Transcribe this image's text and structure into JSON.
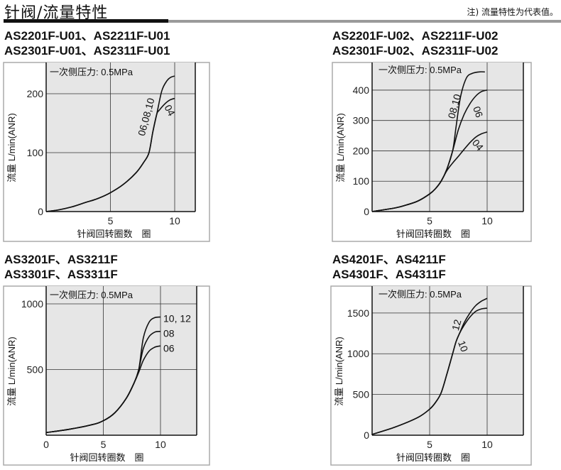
{
  "header": {
    "title": "针阀/流量特性",
    "note": "注) 流量特性为代表值。"
  },
  "colors": {
    "plot_bg": "#e6e6e6",
    "curve": "#111111",
    "grid": "#333333",
    "title_bar": "#111111",
    "rule": "#9a9a9a"
  },
  "chart_data": [
    {
      "type": "line",
      "title_lines": [
        "AS2201F-U01、AS2211F-U01",
        "AS2301F-U01、AS2311F-U01"
      ],
      "annotation": "一次侧压力: 0.5MPa",
      "xlabel": "针阀回转圈数　圈",
      "ylabel": "流量 L/min(ANR)",
      "xticks": [
        0,
        5,
        10
      ],
      "xtick_labels": [
        "",
        "5",
        "10"
      ],
      "yticks": [
        0,
        100,
        200
      ],
      "ytick_labels": [
        "0",
        "100",
        "200"
      ],
      "xlim": [
        0,
        11.2
      ],
      "ylim": [
        0,
        253
      ],
      "grid": true,
      "series": [
        {
          "name": "06,08,10",
          "x": [
            0,
            1,
            2,
            3,
            4,
            5,
            6,
            7,
            7.6,
            8,
            8.3,
            8.6,
            9,
            9.4,
            9.7,
            10
          ],
          "y": [
            0,
            3,
            8,
            15,
            22,
            32,
            46,
            66,
            84,
            100,
            135,
            165,
            205,
            222,
            228,
            230
          ]
        },
        {
          "name": "04",
          "x": [
            0,
            1,
            2,
            3,
            4,
            5,
            6,
            7,
            7.6,
            8,
            8.3,
            8.6,
            8.8,
            9.2,
            9.6,
            10
          ],
          "y": [
            0,
            3,
            8,
            15,
            22,
            32,
            46,
            66,
            84,
            100,
            135,
            165,
            172,
            182,
            189,
            192
          ]
        }
      ]
    },
    {
      "type": "line",
      "title_lines": [
        "AS2201F-U02、AS2211F-U02",
        "AS2301F-U02、AS2311F-U02"
      ],
      "annotation": "一次侧压力: 0.5MPa",
      "xlabel": "针阀回转圈数　圈",
      "ylabel": "流量 L/min(ANR)",
      "xticks": [
        0,
        5,
        10
      ],
      "xtick_labels": [
        "",
        "5",
        "10"
      ],
      "yticks": [
        0,
        100,
        200,
        300,
        400
      ],
      "ytick_labels": [
        "0",
        "100",
        "200",
        "300",
        "400"
      ],
      "xlim": [
        0,
        13.2
      ],
      "ylim": [
        0,
        491
      ],
      "grid": true,
      "series": [
        {
          "name": "08,10",
          "x": [
            0,
            2,
            3,
            4,
            5,
            5.5,
            6,
            6.5,
            7,
            7.3,
            7.7,
            8.2,
            8.7,
            9.3,
            9.8
          ],
          "y": [
            0,
            12,
            22,
            35,
            58,
            75,
            100,
            140,
            200,
            280,
            380,
            440,
            455,
            460,
            460
          ]
        },
        {
          "name": "06",
          "x": [
            0,
            2,
            3,
            4,
            5,
            5.5,
            6,
            6.5,
            7,
            7.5,
            8,
            8.5,
            9,
            9.5,
            10
          ],
          "y": [
            0,
            12,
            22,
            35,
            58,
            75,
            100,
            140,
            200,
            270,
            320,
            355,
            380,
            395,
            400
          ]
        },
        {
          "name": "04",
          "x": [
            0,
            2,
            3,
            4,
            5,
            5.5,
            6,
            6.5,
            7,
            7.5,
            8,
            8.5,
            9,
            9.5,
            10
          ],
          "y": [
            0,
            12,
            22,
            35,
            58,
            75,
            100,
            135,
            160,
            182,
            205,
            227,
            245,
            256,
            262
          ]
        }
      ]
    },
    {
      "type": "line",
      "title_lines": [
        "AS3201F、AS3211F",
        "AS3301F、AS3311F"
      ],
      "annotation": "一次侧压力: 0.5MPa",
      "xlabel": "针阀回转圈数　圈",
      "ylabel": "流量 L/min(ANR)",
      "xticks": [
        0,
        5,
        10
      ],
      "xtick_labels": [
        "0",
        "5",
        "10"
      ],
      "yticks": [
        500,
        1000
      ],
      "ytick_labels": [
        "500",
        "1000"
      ],
      "xlim": [
        0,
        13
      ],
      "ylim": [
        0,
        1135
      ],
      "grid": true,
      "series": [
        {
          "name": "10, 12",
          "x": [
            0,
            2,
            4,
            5,
            6,
            7,
            7.7,
            8.1,
            8.5,
            9,
            9.5,
            10
          ],
          "y": [
            20,
            45,
            80,
            110,
            170,
            280,
            400,
            500,
            740,
            860,
            895,
            900
          ]
        },
        {
          "name": "08",
          "x": [
            0,
            2,
            4,
            5,
            6,
            7,
            7.7,
            8.1,
            8.5,
            9,
            9.5,
            10
          ],
          "y": [
            20,
            45,
            80,
            110,
            170,
            280,
            400,
            500,
            660,
            750,
            785,
            790
          ]
        },
        {
          "name": "06",
          "x": [
            0,
            2,
            4,
            5,
            6,
            7,
            7.7,
            8.1,
            8.5,
            9,
            9.5,
            10
          ],
          "y": [
            20,
            45,
            80,
            110,
            170,
            280,
            400,
            480,
            570,
            640,
            670,
            680
          ]
        }
      ]
    },
    {
      "type": "line",
      "title_lines": [
        "AS4201F、AS4211F",
        "AS4301F、AS4311F"
      ],
      "annotation": "一次侧压力: 0.5MPa",
      "xlabel": "针阀回转圈数　圈",
      "ylabel": "流量 L/min(ANR)",
      "xticks": [
        0,
        5,
        10
      ],
      "xtick_labels": [
        "",
        "5",
        "10"
      ],
      "yticks": [
        0,
        500,
        1000,
        1500
      ],
      "ytick_labels": [
        "0",
        "500",
        "1000",
        "1500"
      ],
      "xlim": [
        0,
        13.2
      ],
      "ylim": [
        0,
        1830
      ],
      "grid": true,
      "series": [
        {
          "name": "12",
          "x": [
            0,
            2,
            4,
            5,
            5.5,
            6,
            6.5,
            7,
            7.3,
            7.6,
            8,
            8.5,
            9,
            9.5,
            10
          ],
          "y": [
            10,
            100,
            220,
            320,
            400,
            520,
            750,
            1000,
            1150,
            1250,
            1380,
            1500,
            1590,
            1645,
            1680
          ]
        },
        {
          "name": "10",
          "x": [
            0,
            2,
            4,
            5,
            5.5,
            6,
            6.5,
            7,
            7.3,
            7.6,
            8,
            8.5,
            9,
            9.5,
            10
          ],
          "y": [
            10,
            100,
            220,
            320,
            400,
            520,
            750,
            1000,
            1150,
            1250,
            1350,
            1450,
            1520,
            1550,
            1560
          ]
        }
      ]
    }
  ]
}
